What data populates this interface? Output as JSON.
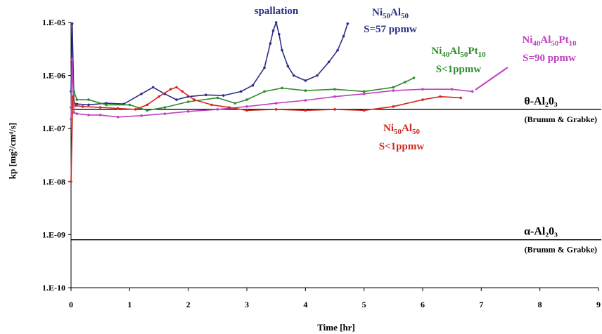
{
  "chart_data": {
    "type": "line",
    "title": "",
    "xlabel": "Time [hr]",
    "ylabel": "kp [mg²/cm⁴/s]",
    "xlim": [
      0,
      9
    ],
    "ylim": [
      1e-10,
      1e-05
    ],
    "yscale": "log",
    "grid": false,
    "x_ticks": [
      "0",
      "1",
      "2",
      "3",
      "4",
      "5",
      "6",
      "7",
      "8",
      "9"
    ],
    "y_ticks": [
      "1.E-10",
      "1.E-09",
      "1.E-08",
      "1.E-07",
      "1.E-06",
      "1.E-05"
    ],
    "series": [
      {
        "color": "#2b2f86",
        "label": {
          "line1": "Ni50Al50",
          "line2": "S=57 ppmw"
        },
        "x": [
          0,
          0.02,
          0.05,
          0.1,
          0.3,
          0.6,
          0.9,
          1.2,
          1.4,
          1.6,
          1.8,
          2.0,
          2.3,
          2.6,
          2.9,
          3.1,
          3.3,
          3.4,
          3.45,
          3.5,
          3.55,
          3.6,
          3.7,
          3.8,
          4.0,
          4.2,
          4.4,
          4.55,
          4.65,
          4.72
        ],
        "y": [
          5e-07,
          9.5e-06,
          3e-07,
          2.9e-07,
          2.8e-07,
          3e-07,
          2.9e-07,
          4.5e-07,
          6e-07,
          4.5e-07,
          3.5e-07,
          4e-07,
          4.3e-07,
          4.2e-07,
          5e-07,
          6.5e-07,
          1.4e-06,
          4e-06,
          7e-06,
          1e-05,
          6e-06,
          3e-06,
          1.5e-06,
          1e-06,
          8e-07,
          1e-06,
          1.8e-06,
          3e-06,
          5.5e-06,
          9.5e-06
        ]
      },
      {
        "color": "#2f8c2f",
        "label": {
          "line1": "Ni40Al50Pt10",
          "line2": "S<1ppmw"
        },
        "x": [
          0,
          0.05,
          0.1,
          0.3,
          0.6,
          1.0,
          1.3,
          1.6,
          2.0,
          2.5,
          2.8,
          3.0,
          3.3,
          3.6,
          4.0,
          4.5,
          5.0,
          5.5,
          5.7,
          5.85
        ],
        "y": [
          2.5e-07,
          5e-07,
          3.5e-07,
          3.5e-07,
          2.8e-07,
          2.8e-07,
          2.2e-07,
          2.5e-07,
          3.2e-07,
          3.8e-07,
          3e-07,
          3.5e-07,
          5e-07,
          5.8e-07,
          5.2e-07,
          5.5e-07,
          5e-07,
          6e-07,
          7.5e-07,
          9e-07
        ]
      },
      {
        "color": "#c040c0",
        "label": {
          "line1": "Ni40Al50Pt10",
          "line2": "S=90 ppmw"
        },
        "x": [
          0,
          0.02,
          0.05,
          0.1,
          0.3,
          0.5,
          0.8,
          1.2,
          1.6,
          2.0,
          2.5,
          3.0,
          3.5,
          4.0,
          4.5,
          5.0,
          5.5,
          6.0,
          6.5,
          6.85
        ],
        "y": [
          1.5e-07,
          2e-06,
          2e-07,
          1.9e-07,
          1.8e-07,
          1.8e-07,
          1.65e-07,
          1.75e-07,
          1.9e-07,
          2.1e-07,
          2.3e-07,
          2.6e-07,
          3e-07,
          3.4e-07,
          4e-07,
          4.5e-07,
          5.2e-07,
          5.5e-07,
          5.5e-07,
          5e-07
        ]
      },
      {
        "color": "#d0281e",
        "label": {
          "line1": "Ni50Al50",
          "line2": "S<1ppmw"
        },
        "x": [
          0,
          0.03,
          0.08,
          0.2,
          0.5,
          0.8,
          1.1,
          1.3,
          1.5,
          1.7,
          1.8,
          1.9,
          2.1,
          2.4,
          2.7,
          3.0,
          3.5,
          4.0,
          4.5,
          5.0,
          5.5,
          6.0,
          6.3,
          6.65
        ],
        "y": [
          1e-08,
          4e-07,
          2.7e-07,
          2.6e-07,
          2.5e-07,
          2.4e-07,
          2.3e-07,
          2.8e-07,
          4e-07,
          5.5e-07,
          6e-07,
          5e-07,
          3.5e-07,
          2.8e-07,
          2.5e-07,
          2.2e-07,
          2.3e-07,
          2.2e-07,
          2.3e-07,
          2.2e-07,
          2.6e-07,
          3.5e-07,
          4e-07,
          3.8e-07
        ]
      }
    ],
    "reference_lines": [
      {
        "y": 2.3e-07,
        "label": "θ-Al₂0₃",
        "source": "(Brumm & Grabke)"
      },
      {
        "y": 8e-10,
        "label": "α-Al₂0₃",
        "source": "(Brumm & Grabke)"
      }
    ],
    "annotations": [
      {
        "text": "spallation",
        "color": "#2b2f86"
      }
    ]
  }
}
